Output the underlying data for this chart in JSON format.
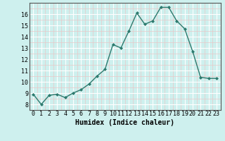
{
  "x": [
    0,
    1,
    2,
    3,
    4,
    5,
    6,
    7,
    8,
    9,
    10,
    11,
    12,
    13,
    14,
    15,
    16,
    17,
    18,
    19,
    20,
    21,
    22,
    23
  ],
  "y": [
    8.9,
    8.0,
    8.8,
    8.9,
    8.6,
    9.0,
    9.3,
    9.8,
    10.5,
    11.1,
    13.3,
    13.0,
    14.5,
    16.1,
    15.1,
    15.4,
    16.6,
    16.6,
    15.4,
    14.7,
    12.7,
    10.4,
    10.3,
    10.3
  ],
  "xlabel": "Humidex (Indice chaleur)",
  "ylabel_ticks": [
    8,
    9,
    10,
    11,
    12,
    13,
    14,
    15,
    16
  ],
  "ylim": [
    7.5,
    17.0
  ],
  "xlim": [
    -0.5,
    23.5
  ],
  "line_color": "#2d7a6e",
  "marker_color": "#2d7a6e",
  "bg_color": "#cef0ee",
  "grid_color": "#ffffff",
  "pink_grid_color": "#e8c8c8",
  "xlabel_fontsize": 7,
  "tick_fontsize": 6,
  "title": ""
}
